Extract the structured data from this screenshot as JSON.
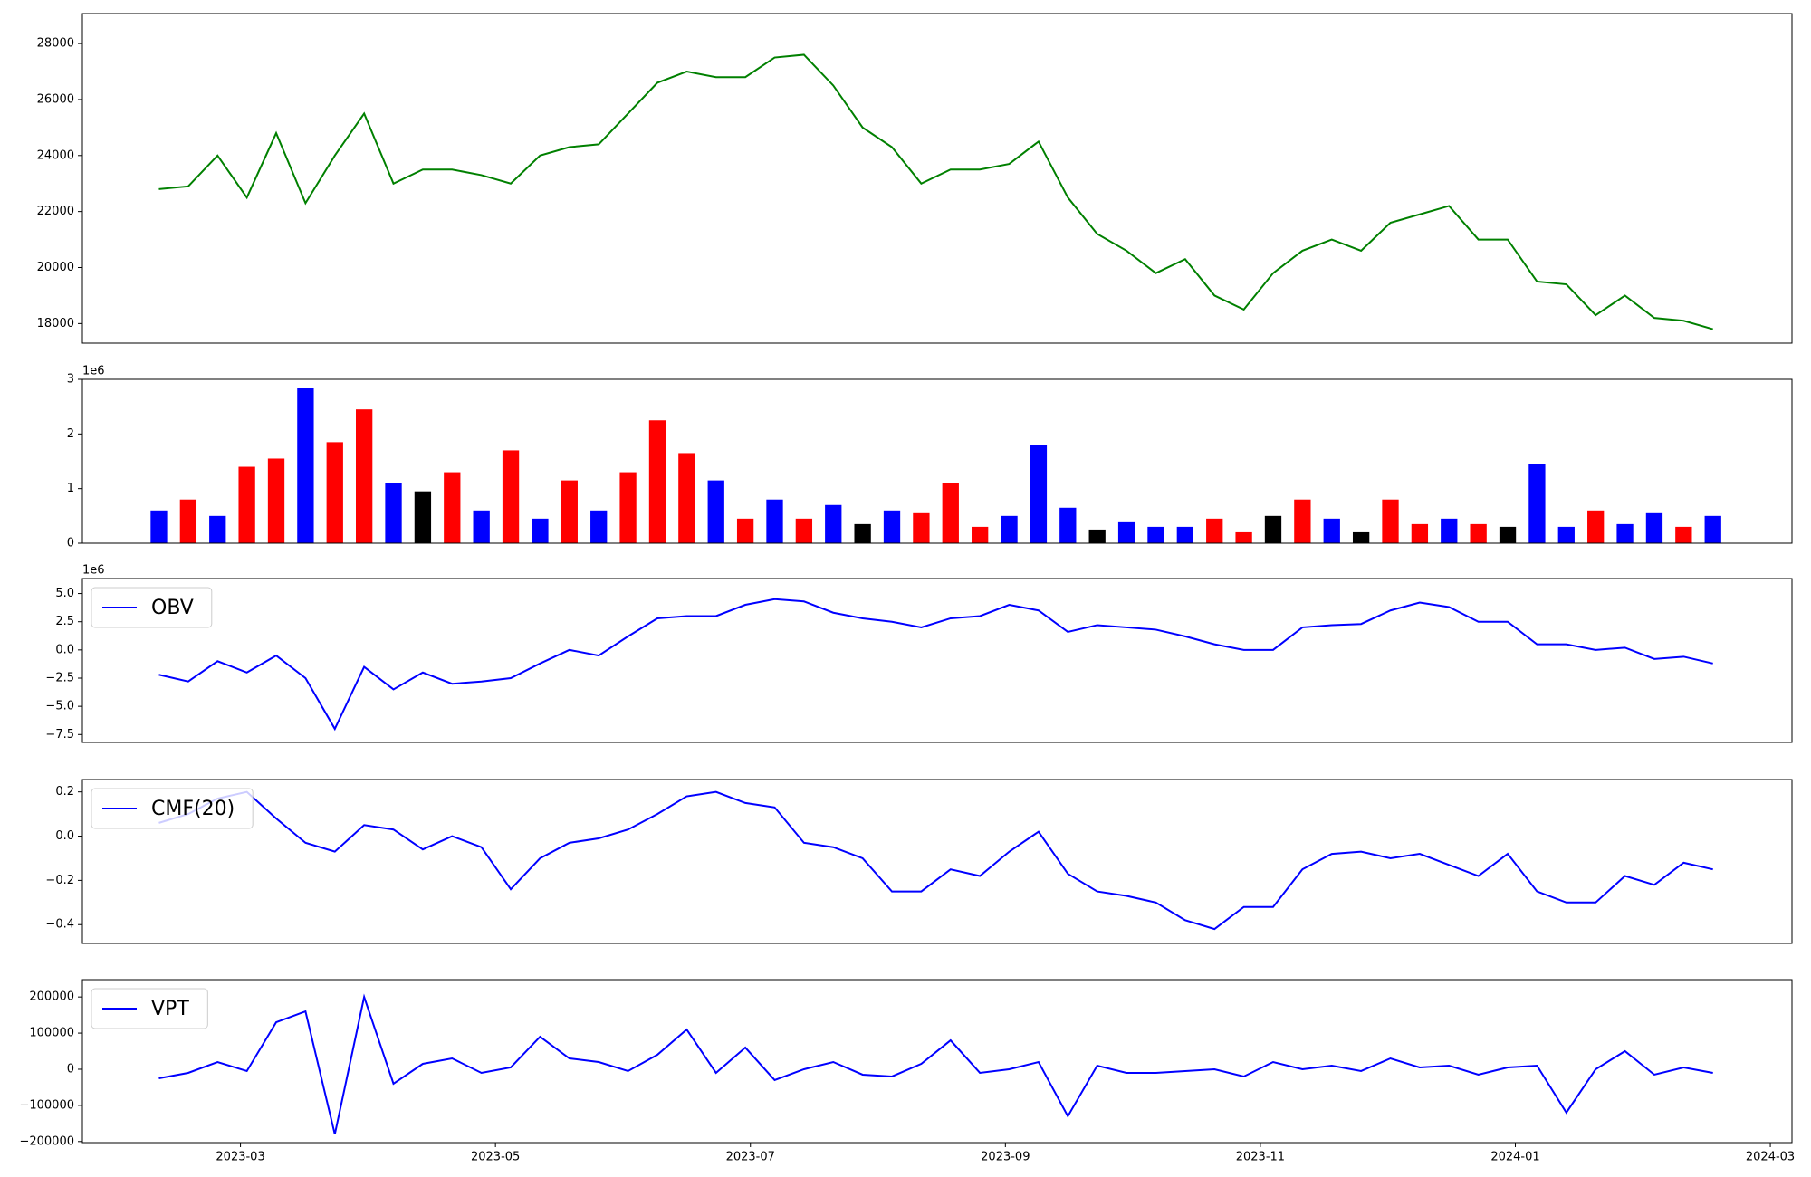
{
  "chart_data": [
    {
      "type": "line",
      "x": [
        2.36,
        2.59,
        2.82,
        3.05,
        3.28,
        3.51,
        3.74,
        3.97,
        4.2,
        4.43,
        4.66,
        4.89,
        5.12,
        5.35,
        5.58,
        5.81,
        6.04,
        6.27,
        6.5,
        6.73,
        6.96,
        7.19,
        7.42,
        7.65,
        7.88,
        8.11,
        8.34,
        8.57,
        8.8,
        9.03,
        9.26,
        9.49,
        9.72,
        9.95,
        10.18,
        10.41,
        10.64,
        10.87,
        11.1,
        11.33,
        11.56,
        11.79,
        12.02,
        12.25,
        12.48,
        12.71,
        12.94,
        13.17,
        13.4,
        13.63,
        13.86,
        14.09,
        14.32,
        14.55
      ],
      "series": [
        {
          "color": "#008000",
          "values": [
            22800,
            22900,
            24000,
            22500,
            24800,
            22300,
            24000,
            25500,
            23000,
            23500,
            23500,
            23300,
            23000,
            24000,
            24300,
            24400,
            25500,
            26600,
            27000,
            26800,
            26800,
            27500,
            27600,
            26500,
            25000,
            24300,
            23000,
            23500,
            23500,
            23700,
            24500,
            22500,
            21200,
            20600,
            19800,
            20300,
            19000,
            18500,
            19800,
            20600,
            21000,
            20600,
            21600,
            21900,
            22200,
            21000,
            21000,
            19500,
            19400,
            18300,
            19000,
            18200,
            18100,
            17800
          ]
        }
      ],
      "xlim": [
        1.76,
        15.17
      ],
      "ylim": [
        17300,
        29070
      ],
      "yticks": [
        18000,
        20000,
        22000,
        24000,
        26000,
        28000
      ]
    },
    {
      "type": "bar",
      "offset_label": "1e6",
      "x": [
        2.36,
        2.59,
        2.82,
        3.05,
        3.28,
        3.51,
        3.74,
        3.97,
        4.2,
        4.43,
        4.66,
        4.89,
        5.12,
        5.35,
        5.58,
        5.81,
        6.04,
        6.27,
        6.5,
        6.73,
        6.96,
        7.19,
        7.42,
        7.65,
        7.88,
        8.11,
        8.34,
        8.57,
        8.8,
        9.03,
        9.26,
        9.49,
        9.72,
        9.95,
        10.18,
        10.41,
        10.64,
        10.87,
        11.1,
        11.33,
        11.56,
        11.79,
        12.02,
        12.25,
        12.48,
        12.71,
        12.94,
        13.17,
        13.4,
        13.63,
        13.86,
        14.09,
        14.32,
        14.55
      ],
      "values": [
        600000,
        800000,
        500000,
        1400000,
        1550000,
        2850000,
        1850000,
        2450000,
        1100000,
        950000,
        1300000,
        600000,
        1700000,
        450000,
        1150000,
        600000,
        1300000,
        2250000,
        1650000,
        1150000,
        450000,
        800000,
        450000,
        700000,
        350000,
        600000,
        550000,
        1100000,
        300000,
        500000,
        1800000,
        650000,
        250000,
        400000,
        300000,
        300000,
        450000,
        200000,
        500000,
        800000,
        450000,
        200000,
        800000,
        350000,
        450000,
        350000,
        300000,
        1450000,
        300000,
        600000,
        350000,
        550000,
        300000,
        500000
      ],
      "colors": [
        "blue",
        "red",
        "blue",
        "red",
        "red",
        "blue",
        "red",
        "red",
        "blue",
        "black",
        "red",
        "blue",
        "red",
        "blue",
        "red",
        "blue",
        "red",
        "red",
        "red",
        "blue",
        "red",
        "blue",
        "red",
        "blue",
        "black",
        "blue",
        "red",
        "red",
        "red",
        "blue",
        "blue",
        "blue",
        "black",
        "blue",
        "blue",
        "blue",
        "red",
        "red",
        "black",
        "red",
        "blue",
        "black",
        "red",
        "red",
        "blue",
        "red",
        "black",
        "blue",
        "blue",
        "red",
        "blue",
        "blue",
        "red",
        "blue"
      ],
      "xlim": [
        1.76,
        15.17
      ],
      "ylim": [
        0,
        3000000
      ],
      "yticks": [
        {
          "value": 0,
          "label": "0"
        },
        {
          "value": 1000000,
          "label": "1"
        },
        {
          "value": 2000000,
          "label": "2"
        },
        {
          "value": 3000000,
          "label": "3"
        }
      ]
    },
    {
      "type": "line",
      "offset_label": "1e6",
      "legend": "upper left",
      "x": [
        2.36,
        2.59,
        2.82,
        3.05,
        3.28,
        3.51,
        3.74,
        3.97,
        4.2,
        4.43,
        4.66,
        4.89,
        5.12,
        5.35,
        5.58,
        5.81,
        6.04,
        6.27,
        6.5,
        6.73,
        6.96,
        7.19,
        7.42,
        7.65,
        7.88,
        8.11,
        8.34,
        8.57,
        8.8,
        9.03,
        9.26,
        9.49,
        9.72,
        9.95,
        10.18,
        10.41,
        10.64,
        10.87,
        11.1,
        11.33,
        11.56,
        11.79,
        12.02,
        12.25,
        12.48,
        12.71,
        12.94,
        13.17,
        13.4,
        13.63,
        13.86,
        14.09,
        14.32,
        14.55
      ],
      "series": [
        {
          "name": "OBV",
          "color": "#0000ff",
          "values": [
            -2200000,
            -2800000,
            -1000000,
            -2000000,
            -500000,
            -2500000,
            -7000000,
            -1500000,
            -3500000,
            -2000000,
            -3000000,
            -2800000,
            -2500000,
            -1200000,
            0,
            -500000,
            1200000,
            2800000,
            3000000,
            3000000,
            4000000,
            4500000,
            4300000,
            3300000,
            2800000,
            2500000,
            2000000,
            2800000,
            3000000,
            4000000,
            3500000,
            1600000,
            2200000,
            2000000,
            1800000,
            1200000,
            500000,
            0,
            0,
            2000000,
            2200000,
            2300000,
            3500000,
            4200000,
            3800000,
            2500000,
            2500000,
            500000,
            500000,
            0,
            200000,
            -800000,
            -600000,
            -1200000
          ]
        }
      ],
      "xlim": [
        1.76,
        15.17
      ],
      "ylim": [
        -8200000,
        6330000
      ],
      "yticks": [
        {
          "value": -7500000,
          "label": "−7.5"
        },
        {
          "value": -5000000,
          "label": "−5.0"
        },
        {
          "value": -2500000,
          "label": "−2.5"
        },
        {
          "value": 0,
          "label": "0.0"
        },
        {
          "value": 2500000,
          "label": "2.5"
        },
        {
          "value": 5000000,
          "label": "5.0"
        }
      ]
    },
    {
      "type": "line",
      "legend": "upper left",
      "x": [
        2.36,
        2.59,
        2.82,
        3.05,
        3.28,
        3.51,
        3.74,
        3.97,
        4.2,
        4.43,
        4.66,
        4.89,
        5.12,
        5.35,
        5.58,
        5.81,
        6.04,
        6.27,
        6.5,
        6.73,
        6.96,
        7.19,
        7.42,
        7.65,
        7.88,
        8.11,
        8.34,
        8.57,
        8.8,
        9.03,
        9.26,
        9.49,
        9.72,
        9.95,
        10.18,
        10.41,
        10.64,
        10.87,
        11.1,
        11.33,
        11.56,
        11.79,
        12.02,
        12.25,
        12.48,
        12.71,
        12.94,
        13.17,
        13.4,
        13.63,
        13.86,
        14.09,
        14.32,
        14.55
      ],
      "series": [
        {
          "name": "CMF(20)",
          "color": "#0000ff",
          "values": [
            0.06,
            0.1,
            0.17,
            0.2,
            0.08,
            -0.03,
            -0.07,
            0.05,
            0.03,
            -0.06,
            0.0,
            -0.05,
            -0.24,
            -0.1,
            -0.03,
            -0.01,
            0.03,
            0.1,
            0.18,
            0.2,
            0.15,
            0.13,
            -0.03,
            -0.05,
            -0.1,
            -0.25,
            -0.25,
            -0.15,
            -0.18,
            -0.07,
            0.02,
            -0.17,
            -0.25,
            -0.27,
            -0.3,
            -0.38,
            -0.42,
            -0.32,
            -0.32,
            -0.15,
            -0.08,
            -0.07,
            -0.1,
            -0.08,
            -0.13,
            -0.18,
            -0.08,
            -0.25,
            -0.3,
            -0.3,
            -0.18,
            -0.22,
            -0.12,
            -0.15
          ]
        }
      ],
      "xlim": [
        1.76,
        15.17
      ],
      "ylim": [
        -0.485,
        0.256
      ],
      "yticks": [
        {
          "value": -0.4,
          "label": "−0.4"
        },
        {
          "value": -0.2,
          "label": "−0.2"
        },
        {
          "value": 0,
          "label": "0.0"
        },
        0.2
      ]
    },
    {
      "type": "line",
      "legend": "upper left",
      "x": [
        2.36,
        2.59,
        2.82,
        3.05,
        3.28,
        3.51,
        3.74,
        3.97,
        4.2,
        4.43,
        4.66,
        4.89,
        5.12,
        5.35,
        5.58,
        5.81,
        6.04,
        6.27,
        6.5,
        6.73,
        6.96,
        7.19,
        7.42,
        7.65,
        7.88,
        8.11,
        8.34,
        8.57,
        8.8,
        9.03,
        9.26,
        9.49,
        9.72,
        9.95,
        10.18,
        10.41,
        10.64,
        10.87,
        11.1,
        11.33,
        11.56,
        11.79,
        12.02,
        12.25,
        12.48,
        12.71,
        12.94,
        13.17,
        13.4,
        13.63,
        13.86,
        14.09,
        14.32,
        14.55
      ],
      "series": [
        {
          "name": "VPT",
          "color": "#0000ff",
          "values": [
            -25000,
            -10000,
            20000,
            -5000,
            130000,
            160000,
            -180000,
            200000,
            -40000,
            15000,
            30000,
            -10000,
            5000,
            90000,
            30000,
            20000,
            -5000,
            40000,
            110000,
            -10000,
            60000,
            -30000,
            0,
            20000,
            -15000,
            -20000,
            15000,
            80000,
            -10000,
            0,
            20000,
            -130000,
            10000,
            -10000,
            -10000,
            -5000,
            0,
            -20000,
            20000,
            0,
            10000,
            -5000,
            30000,
            5000,
            10000,
            -15000,
            5000,
            10000,
            -120000,
            0,
            50000,
            -15000,
            5000,
            -10000
          ]
        }
      ],
      "xlim": [
        1.76,
        15.17
      ],
      "ylim": [
        -203000,
        248000
      ],
      "yticks": [
        {
          "value": -200000,
          "label": "−200000"
        },
        {
          "value": -100000,
          "label": "−100000"
        },
        0,
        100000,
        200000
      ],
      "xticks": [
        {
          "value": 3,
          "label": "2023-03"
        },
        {
          "value": 5,
          "label": "2023-05"
        },
        {
          "value": 7,
          "label": "2023-07"
        },
        {
          "value": 9,
          "label": "2023-09"
        },
        {
          "value": 11,
          "label": "2023-11"
        },
        {
          "value": 13,
          "label": "2024-01"
        },
        {
          "value": 15,
          "label": "2024-03"
        }
      ]
    }
  ]
}
